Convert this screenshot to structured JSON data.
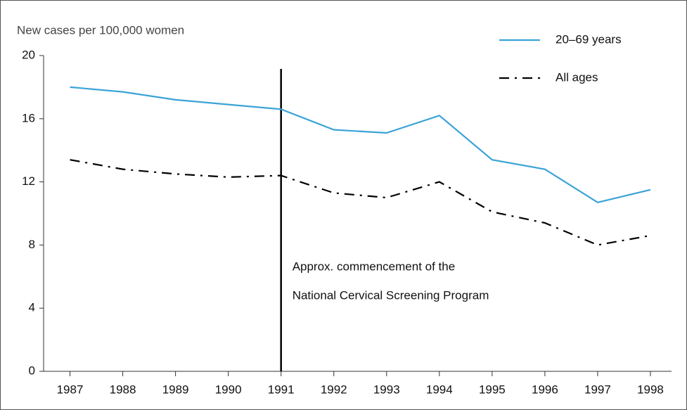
{
  "chart_data": {
    "type": "line",
    "y_axis_label": "New cases per 100,000 women",
    "x": [
      1987,
      1988,
      1989,
      1990,
      1991,
      1992,
      1993,
      1994,
      1995,
      1996,
      1997,
      1998
    ],
    "xlim": [
      1986.5,
      1998.4
    ],
    "xticks": [
      1987,
      1988,
      1989,
      1990,
      1991,
      1992,
      1993,
      1994,
      1995,
      1996,
      1997,
      1998
    ],
    "ylim": [
      0,
      20
    ],
    "yticks": [
      0,
      4,
      8,
      12,
      16,
      20
    ],
    "series": [
      {
        "name": "20–69 years",
        "color": "#3ba3d8",
        "style": "solid",
        "values": [
          18.0,
          17.7,
          17.2,
          16.9,
          16.6,
          15.3,
          15.1,
          16.2,
          13.4,
          12.8,
          10.7,
          11.5
        ]
      },
      {
        "name": "All ages",
        "color": "#000000",
        "style": "dashdot",
        "values": [
          13.4,
          12.8,
          12.5,
          12.3,
          12.4,
          11.3,
          11.0,
          12.0,
          10.1,
          9.4,
          8.0,
          8.6
        ]
      }
    ],
    "annotation": {
      "x": 1991,
      "lines": [
        "Approx. commencement of the",
        "National Cervical Screening Program"
      ]
    },
    "legend": "top-right"
  }
}
